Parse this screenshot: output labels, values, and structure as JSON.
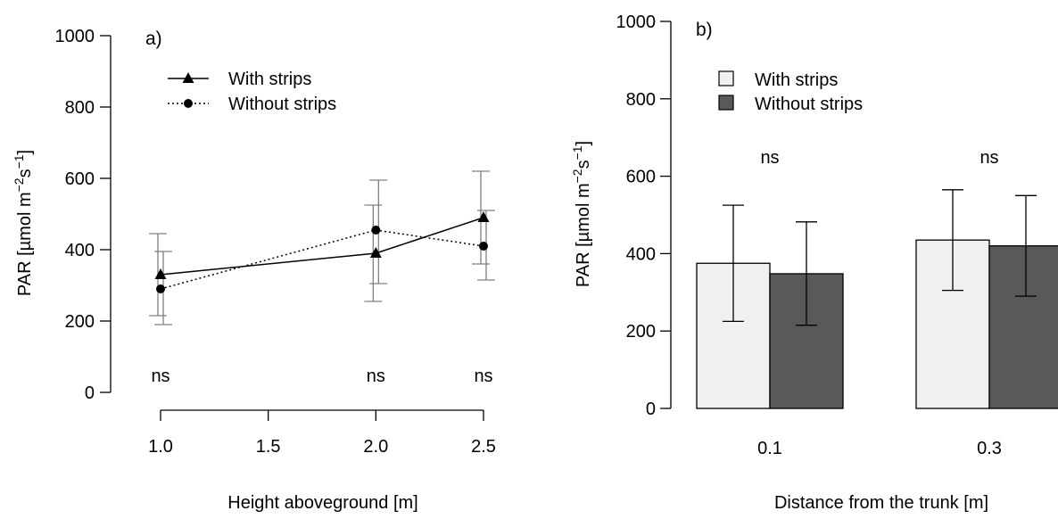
{
  "chart_data": [
    {
      "panel_label": "a)",
      "type": "line",
      "xlabel": "Height aboveground [m]",
      "ylabel_main": "PAR [µmol m",
      "ylabel_sup1": "−2",
      "ylabel_mid": "s",
      "ylabel_sup2": "−1",
      "ylabel_end": "]",
      "xlim": [
        1.0,
        2.5
      ],
      "ylim": [
        0,
        1000
      ],
      "xticks": [
        1.0,
        1.5,
        2.0,
        2.5
      ],
      "xtick_labels": [
        "1.0",
        "1.5",
        "2.0",
        "2.5"
      ],
      "yticks": [
        0,
        200,
        400,
        600,
        800,
        1000
      ],
      "ytick_labels": [
        "0",
        "200",
        "400",
        "600",
        "800",
        "1000"
      ],
      "x": [
        1.0,
        2.0,
        2.5
      ],
      "series": [
        {
          "name": "With strips",
          "marker": "triangle",
          "linestyle": "solid",
          "values": [
            330,
            390,
            490
          ],
          "err_low": [
            215,
            255,
            360
          ],
          "err_high": [
            445,
            525,
            620
          ]
        },
        {
          "name": "Without strips",
          "marker": "circle",
          "linestyle": "dotted",
          "values": [
            290,
            455,
            410
          ],
          "err_low": [
            190,
            305,
            315
          ],
          "err_high": [
            395,
            595,
            510
          ]
        }
      ],
      "annotations": [
        "ns",
        "ns",
        "ns"
      ],
      "legend": "top-left",
      "colors": {
        "line": "#000000",
        "errorbar": "#808080"
      }
    },
    {
      "panel_label": "b)",
      "type": "bar",
      "xlabel": "Distance from the trunk [m]",
      "ylabel_main": "PAR [µmol m",
      "ylabel_sup1": "−2",
      "ylabel_mid": "s",
      "ylabel_sup2": "−1",
      "ylabel_end": "]",
      "ylim": [
        0,
        1000
      ],
      "yticks": [
        0,
        200,
        400,
        600,
        800,
        1000
      ],
      "ytick_labels": [
        "0",
        "200",
        "400",
        "600",
        "800",
        "1000"
      ],
      "categories": [
        "0.1",
        "0.3"
      ],
      "series": [
        {
          "name": "With strips",
          "color": "#f0f0f0",
          "values": [
            375,
            435
          ],
          "err_low": [
            225,
            305
          ],
          "err_high": [
            525,
            565
          ]
        },
        {
          "name": "Without strips",
          "color": "#595959",
          "values": [
            348,
            420
          ],
          "err_low": [
            215,
            290
          ],
          "err_high": [
            482,
            550
          ]
        }
      ],
      "annotations": [
        "ns",
        "ns"
      ],
      "legend": "top-left"
    }
  ]
}
